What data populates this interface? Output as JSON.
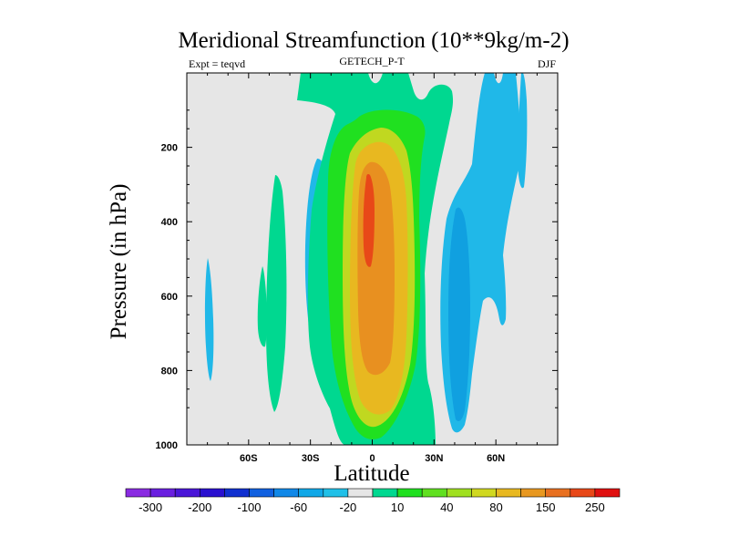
{
  "chart_data": {
    "type": "filled-contour",
    "title": "Meridional Streamfunction (10**9kg/m-2)",
    "left_label": "Expt = teqvd",
    "center_label": "GETECH_P-T",
    "right_label": "DJF",
    "xlabel": "Latitude",
    "ylabel": "Pressure (in hPa)",
    "xlim": [
      -90,
      90
    ],
    "ylim": [
      1000,
      0
    ],
    "x_ticks": [
      {
        "value": -60,
        "label": "60S"
      },
      {
        "value": -30,
        "label": "30S"
      },
      {
        "value": 0,
        "label": "0"
      },
      {
        "value": 30,
        "label": "30N"
      },
      {
        "value": 60,
        "label": "60N"
      }
    ],
    "y_ticks": [
      {
        "value": 200,
        "label": "200"
      },
      {
        "value": 400,
        "label": "400"
      },
      {
        "value": 600,
        "label": "600"
      },
      {
        "value": 800,
        "label": "800"
      },
      {
        "value": 1000,
        "label": "1000"
      }
    ],
    "background_color": "#e6e6e6",
    "levels": [
      -300,
      -250,
      -200,
      -150,
      -100,
      -80,
      -60,
      -40,
      -20,
      -10,
      10,
      20,
      40,
      60,
      80,
      100,
      150,
      200,
      250,
      300
    ],
    "colorbar_labels": [
      "-300",
      "-200",
      "-100",
      "-60",
      "-20",
      "10",
      "40",
      "80",
      "150",
      "250"
    ],
    "colorbar_colors": [
      "#8a2be2",
      "#6a1fe0",
      "#4a16d8",
      "#2a10d0",
      "#1030d0",
      "#1060e0",
      "#1088e8",
      "#10a8e8",
      "#20c0e8",
      "#e6e6e6",
      "#00d890",
      "#20e020",
      "#60e020",
      "#a0e020",
      "#d0d820",
      "#e8b820",
      "#e89820",
      "#e87020",
      "#e84818",
      "#e01010"
    ],
    "contours": [
      {
        "lat_range": [
          -78,
          -76
        ],
        "p_range": [
          490,
          830
        ],
        "level": -20
      },
      {
        "lat_range": [
          -55,
          -52
        ],
        "p_range": [
          530,
          760
        ],
        "level": 10
      },
      {
        "lat_range": [
          -48,
          -37
        ],
        "p_range": [
          215,
          990
        ],
        "level": 10
      },
      {
        "lat_range": [
          -32,
          -20
        ],
        "p_range": [
          230,
          760
        ],
        "level": -20
      },
      {
        "lat_range": [
          -19,
          38
        ],
        "p_range": [
          20,
          990
        ],
        "level": 10
      },
      {
        "lat_range": [
          -12,
          27
        ],
        "p_range": [
          80,
          980
        ],
        "level": 20
      },
      {
        "lat_range": [
          -8,
          20
        ],
        "p_range": [
          150,
          960
        ],
        "level": 40
      },
      {
        "lat_range": [
          -5,
          15
        ],
        "p_range": [
          180,
          940
        ],
        "level": 80
      },
      {
        "lat_range": [
          -3,
          11
        ],
        "p_range": [
          230,
          870
        ],
        "level": 150
      },
      {
        "lat_range": [
          -2,
          1
        ],
        "p_range": [
          260,
          460
        ],
        "level": 250
      },
      {
        "lat_range": [
          33,
          70
        ],
        "p_range": [
          5,
          990
        ],
        "level": -20
      },
      {
        "lat_range": [
          36,
          48
        ],
        "p_range": [
          260,
          890
        ],
        "level": -40
      },
      {
        "lat_range": [
          68,
          74
        ],
        "p_range": [
          5,
          240
        ],
        "level": -20
      }
    ]
  }
}
